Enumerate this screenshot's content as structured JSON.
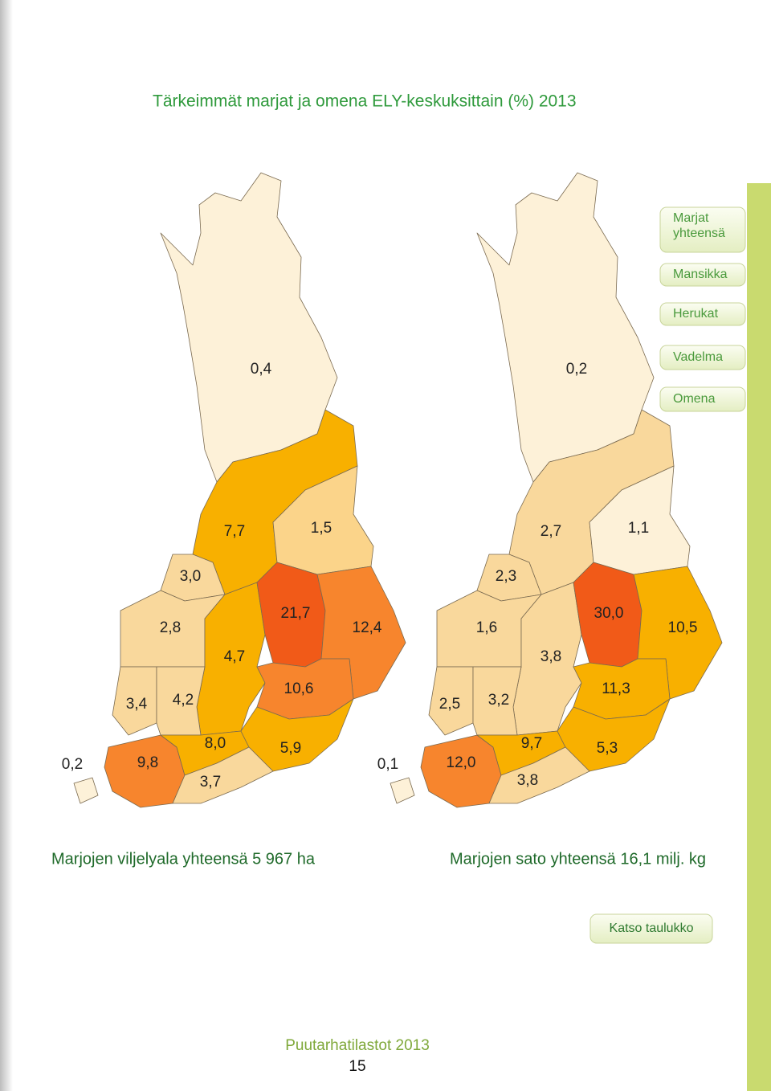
{
  "header": {
    "title": "Tärkeimmät marjat ja omena ELY-keskuksittain (%) 2013"
  },
  "menu": {
    "items": [
      "Marjat yhteensä",
      "Mansikka",
      "Herukat",
      "Vadelma",
      "Omena"
    ]
  },
  "maps": [
    {
      "caption": "Marjojen viljelyala yhteensä 5 967 ha",
      "regions": [
        {
          "label": "0,4",
          "color": "#fdf1d8"
        },
        {
          "label": "7,7",
          "color": "#f8b000"
        },
        {
          "label": "1,5",
          "color": "#fbd48a"
        },
        {
          "label": "3,0",
          "color": "#f9d89c"
        },
        {
          "label": "2,8",
          "color": "#f9d89c"
        },
        {
          "label": "4,7",
          "color": "#f8b000"
        },
        {
          "label": "21,7",
          "color": "#f15a18"
        },
        {
          "label": "12,4",
          "color": "#f7852d"
        },
        {
          "label": "3,4",
          "color": "#f9d89c"
        },
        {
          "label": "4,2",
          "color": "#f9d89c"
        },
        {
          "label": "10,6",
          "color": "#f7852d"
        },
        {
          "label": "0,2",
          "color": "#fdf1d8"
        },
        {
          "label": "9,8",
          "color": "#f7852d"
        },
        {
          "label": "8,0",
          "color": "#f8b000"
        },
        {
          "label": "5,9",
          "color": "#f8b000"
        },
        {
          "label": "3,7",
          "color": "#f9d89c"
        }
      ]
    },
    {
      "caption": "Marjojen sato yhteensä 16,1 milj. kg",
      "regions": [
        {
          "label": "0,2",
          "color": "#fdf1d8"
        },
        {
          "label": "2,7",
          "color": "#f9d89c"
        },
        {
          "label": "1,1",
          "color": "#fdf1d8"
        },
        {
          "label": "2,3",
          "color": "#f9d89c"
        },
        {
          "label": "1,6",
          "color": "#f9d89c"
        },
        {
          "label": "3,8",
          "color": "#f9d89c"
        },
        {
          "label": "30,0",
          "color": "#f15a18"
        },
        {
          "label": "10,5",
          "color": "#f8b000"
        },
        {
          "label": "2,5",
          "color": "#f9d89c"
        },
        {
          "label": "3,2",
          "color": "#f9d89c"
        },
        {
          "label": "11,3",
          "color": "#f8b000"
        },
        {
          "label": "0,1",
          "color": "#fdf1d8"
        },
        {
          "label": "12,0",
          "color": "#f7852d"
        },
        {
          "label": "9,7",
          "color": "#f8b000"
        },
        {
          "label": "5,3",
          "color": "#f8b000"
        },
        {
          "label": "3,8",
          "color": "#f9d89c"
        }
      ]
    }
  ],
  "button": {
    "label": "Katso taulukko"
  },
  "footer": {
    "publication": "Puutarhatilastot 2013",
    "page": 15
  }
}
